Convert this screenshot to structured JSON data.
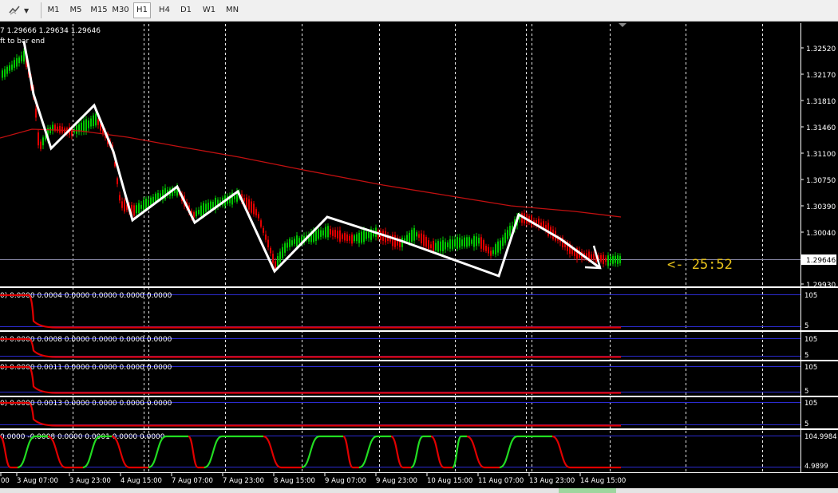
{
  "toolbar": {
    "dropdown_icon": "chart-tools-icon",
    "timeframes": [
      "M1",
      "M5",
      "M15",
      "M30",
      "H1",
      "H4",
      "D1",
      "W1",
      "MN"
    ],
    "active": "H1"
  },
  "main_chart": {
    "info_line": "7 1.29666 1.29634 1.29646",
    "info_line2": "ft to bar end",
    "price_ticks": [
      "1.32520",
      "1.32170",
      "1.31810",
      "1.31460",
      "1.31100",
      "1.30750",
      "1.30390",
      "1.30040",
      "1.29930"
    ],
    "current_price": "1.29646",
    "countdown": "<- 25:52",
    "colors": {
      "bull": "#00c800",
      "bear": "#e00000",
      "ma": "#c01010",
      "zigzag": "#ffffff",
      "grid": "#ffffff"
    }
  },
  "indicators": [
    {
      "label": "0) 0.0000 0.0004 0.0000 0.0000 0.0000 0.0000",
      "top_level": "105",
      "bottom_level": "5"
    },
    {
      "label": "0) 0.0000 0.0008 0.0000 0.0000 0.0000 0.0000",
      "top_level": "105",
      "bottom_level": "5"
    },
    {
      "label": "0) 0.0000 0.0011 0.0000 0.0000 0.0000 0.0000",
      "top_level": "105",
      "bottom_level": "5"
    },
    {
      "label": "0) 0.0000 0.0013 0.0000 0.0000 0.0000 0.0000",
      "top_level": "105",
      "bottom_level": "5"
    },
    {
      "label": "0.0000 -0.0008 0.0000 0.0001 0.0000 0.0000",
      "top_level": "104.9984",
      "bottom_level": "4.9899"
    }
  ],
  "time_axis": [
    "00",
    "3 Aug 07:00",
    "3 Aug 23:00",
    "4 Aug 15:00",
    "7 Aug 07:00",
    "7 Aug 23:00",
    "8 Aug 15:00",
    "9 Aug 07:00",
    "9 Aug 23:00",
    "10 Aug 15:00",
    "11 Aug 07:00",
    "13 Aug 23:00",
    "14 Aug 15:00"
  ]
}
